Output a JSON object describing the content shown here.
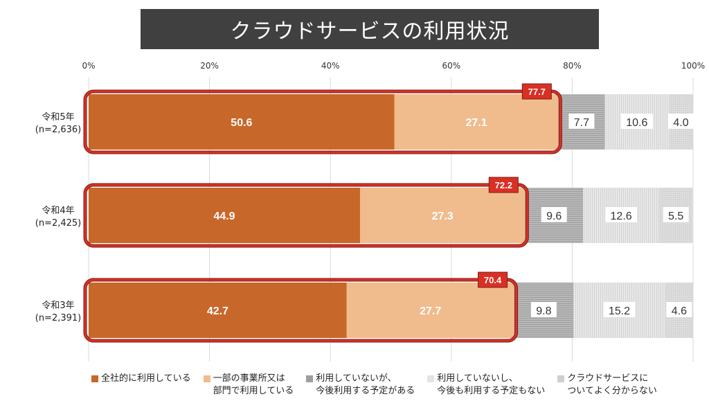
{
  "title": "クラウドサービスの利用状況",
  "chart_data": {
    "type": "bar",
    "orientation": "horizontal",
    "stacked": true,
    "percent": true,
    "xlim": [
      0,
      100
    ],
    "xticks": [
      "0%",
      "20%",
      "40%",
      "60%",
      "80%",
      "100%"
    ],
    "grid": true,
    "legend_position": "bottom",
    "categories": [
      {
        "label": "令和5年",
        "n": "(n=2,636)",
        "total_label": "77.7"
      },
      {
        "label": "令和4年",
        "n": "(n=2,425)",
        "total_label": "72.2"
      },
      {
        "label": "令和3年",
        "n": "(n=2,391)",
        "total_label": "70.4"
      }
    ],
    "series": [
      {
        "name": "全社的に利用している",
        "color": "#c8672a",
        "values": [
          50.6,
          44.9,
          42.7
        ]
      },
      {
        "name": "一部の事業所又は\n部門で利用している",
        "color": "#f0bb8d",
        "values": [
          27.1,
          27.3,
          27.7
        ]
      },
      {
        "name": "利用していないが、\n今後利用する予定がある",
        "color": "#b0b0b0",
        "values": [
          7.7,
          9.6,
          9.8
        ]
      },
      {
        "name": "利用していないし、\n今後も利用する予定もない",
        "color": "#e3e3e3",
        "values": [
          10.6,
          12.6,
          15.2
        ]
      },
      {
        "name": "クラウドサービスに\nついてよく分からない",
        "color": "#d6d6d6",
        "values": [
          4.0,
          5.5,
          4.6
        ]
      }
    ],
    "highlight_color": "#d93025"
  }
}
